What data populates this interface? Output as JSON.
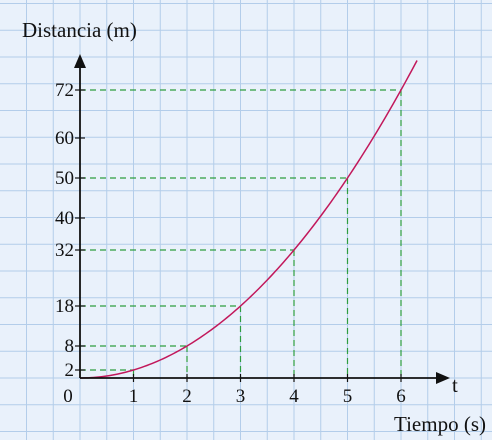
{
  "chart_data": {
    "type": "line",
    "ylabel": "Distancia (m)",
    "xlabel": "Tiempo (s)",
    "axis_symbol": "t",
    "origin_label": "0",
    "x_ticks": [
      1,
      2,
      3,
      4,
      5,
      6
    ],
    "y_ticks": [
      2,
      8,
      18,
      32,
      40,
      50,
      60,
      72
    ],
    "xlim": [
      0,
      6.3
    ],
    "ylim": [
      0,
      81
    ],
    "grid": true,
    "series": [
      {
        "x": [
          0,
          1,
          2,
          3,
          4,
          5,
          6,
          6.3
        ],
        "y": [
          0,
          2,
          8,
          18,
          32,
          50,
          72,
          79.4
        ]
      }
    ],
    "reference_points": [
      {
        "x": 1,
        "y": 2
      },
      {
        "x": 2,
        "y": 8
      },
      {
        "x": 3,
        "y": 18
      },
      {
        "x": 4,
        "y": 32
      },
      {
        "x": 5,
        "y": 50
      },
      {
        "x": 6,
        "y": 72
      }
    ],
    "colors": {
      "background": "#e9f1fb",
      "grid": "#b3cdea",
      "curve": "#c2185b",
      "guide": "#2e9e3f",
      "axis": "#111111"
    }
  }
}
